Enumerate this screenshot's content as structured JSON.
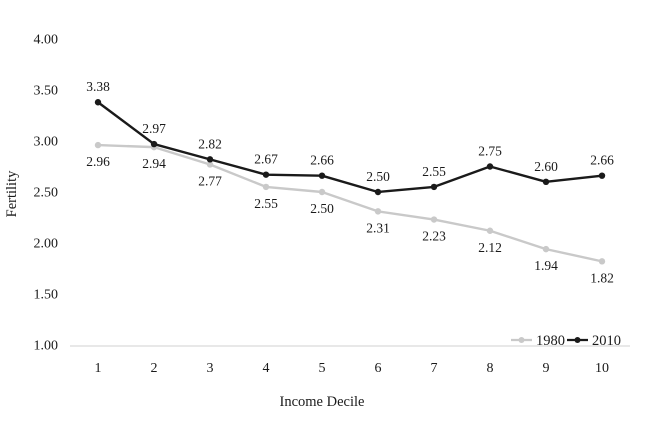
{
  "chart_data": {
    "type": "line",
    "title": "",
    "xlabel": "Income Decile",
    "ylabel": "Fertility",
    "categories": [
      "1",
      "2",
      "3",
      "4",
      "5",
      "6",
      "7",
      "8",
      "9",
      "10"
    ],
    "series": [
      {
        "name": "1980",
        "color": "#c9c9c9",
        "values": [
          2.96,
          2.94,
          2.77,
          2.55,
          2.5,
          2.31,
          2.23,
          2.12,
          1.94,
          1.82
        ],
        "label_position": "below"
      },
      {
        "name": "2010",
        "color": "#1a1a1a",
        "values": [
          3.38,
          2.97,
          2.82,
          2.67,
          2.66,
          2.5,
          2.55,
          2.75,
          2.6,
          2.66
        ],
        "label_position": "above"
      }
    ],
    "ylim": [
      1.0,
      4.0
    ],
    "ytick_step": 0.5,
    "yticks": [
      "4.00",
      "3.50",
      "3.00",
      "2.50",
      "2.00",
      "1.50",
      "1.00"
    ],
    "grid": "off",
    "axis_line_color": "#d9d9d9",
    "text_color": "#1a1a1a",
    "background_color": "#ffffff",
    "legend_position": "bottom-right",
    "data_label_format": "2dp",
    "marker": "circle"
  }
}
